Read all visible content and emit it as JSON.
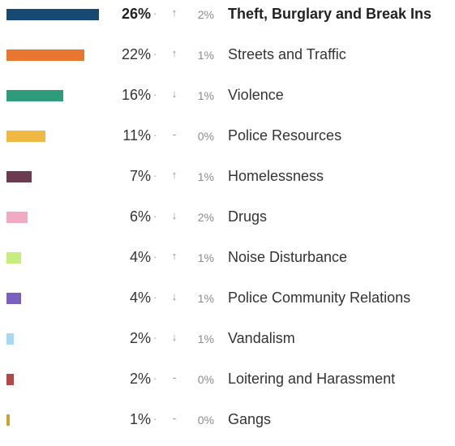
{
  "chart_data": {
    "type": "bar",
    "orientation": "horizontal",
    "title": "",
    "xlabel": "",
    "ylabel": "",
    "xlim": [
      0,
      26
    ],
    "items": [
      {
        "label": "Theft, Burglary and Break Ins",
        "value": 26,
        "value_label": "26%",
        "trend": "up",
        "trend_symbol": "↑",
        "change": 2,
        "change_label": "2%",
        "color": "#174a72"
      },
      {
        "label": "Streets and Traffic",
        "value": 22,
        "value_label": "22%",
        "trend": "up",
        "trend_symbol": "↑",
        "change": 1,
        "change_label": "1%",
        "color": "#e8762e"
      },
      {
        "label": "Violence",
        "value": 16,
        "value_label": "16%",
        "trend": "down",
        "trend_symbol": "↓",
        "change": 1,
        "change_label": "1%",
        "color": "#2e9c7a"
      },
      {
        "label": "Police Resources",
        "value": 11,
        "value_label": "11%",
        "trend": "flat",
        "trend_symbol": "-",
        "change": 0,
        "change_label": "0%",
        "color": "#f0b944"
      },
      {
        "label": "Homelessness",
        "value": 7,
        "value_label": "7%",
        "trend": "up",
        "trend_symbol": "↑",
        "change": 1,
        "change_label": "1%",
        "color": "#6b3c4f"
      },
      {
        "label": "Drugs",
        "value": 6,
        "value_label": "6%",
        "trend": "down",
        "trend_symbol": "↓",
        "change": 2,
        "change_label": "2%",
        "color": "#f2a9c2"
      },
      {
        "label": "Noise Disturbance",
        "value": 4,
        "value_label": "4%",
        "trend": "up",
        "trend_symbol": "↑",
        "change": 1,
        "change_label": "1%",
        "color": "#c6ee7e"
      },
      {
        "label": "Police Community Relations",
        "value": 4,
        "value_label": "4%",
        "trend": "down",
        "trend_symbol": "↓",
        "change": 1,
        "change_label": "1%",
        "color": "#7b5fbf"
      },
      {
        "label": "Vandalism",
        "value": 2,
        "value_label": "2%",
        "trend": "down",
        "trend_symbol": "↓",
        "change": 1,
        "change_label": "1%",
        "color": "#a9d8f2"
      },
      {
        "label": "Loitering and Harassment",
        "value": 2,
        "value_label": "2%",
        "trend": "flat",
        "trend_symbol": "-",
        "change": 0,
        "change_label": "0%",
        "color": "#b04a4a"
      },
      {
        "label": "Gangs",
        "value": 1,
        "value_label": "1%",
        "trend": "flat",
        "trend_symbol": "-",
        "change": 0,
        "change_label": "0%",
        "color": "#c9a23a"
      }
    ]
  }
}
